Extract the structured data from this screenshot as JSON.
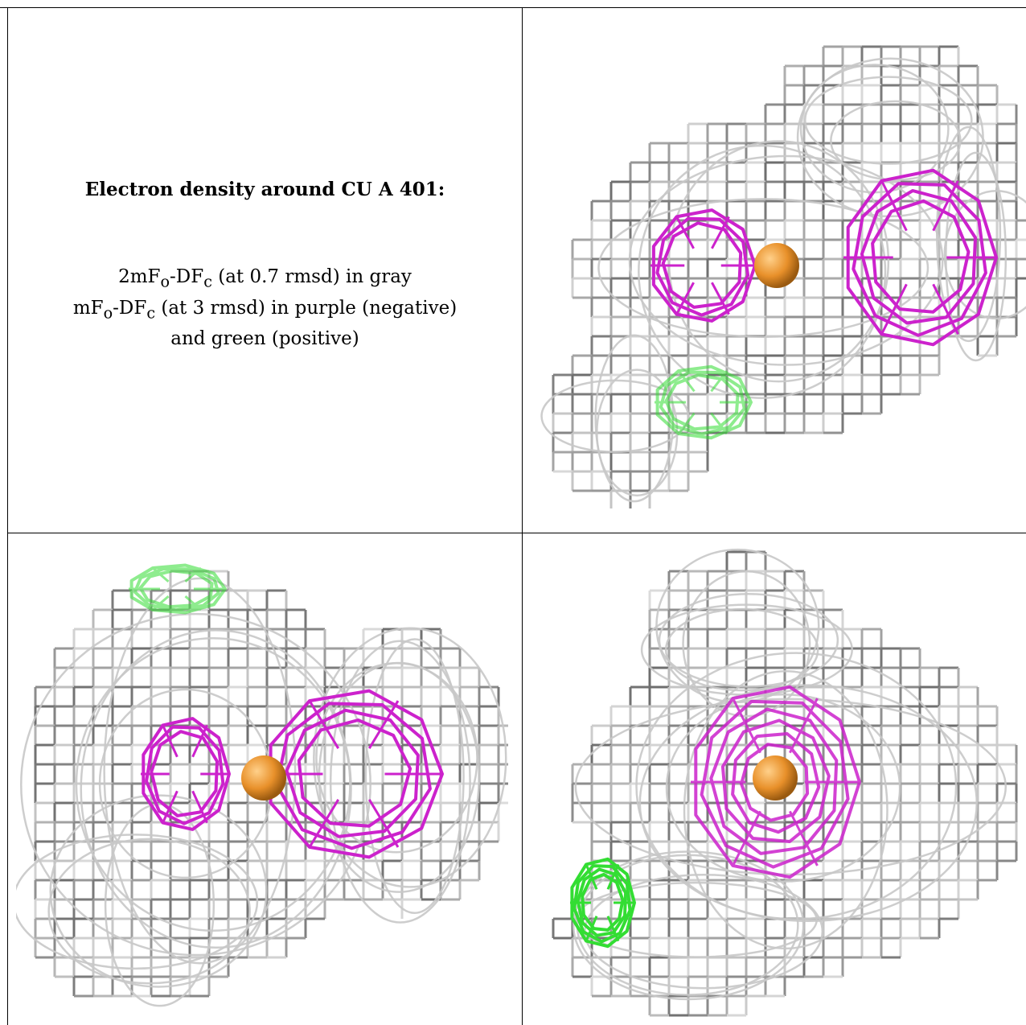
{
  "caption": {
    "title": "Electron density around CU A 401:",
    "line1": "2mFo-DFc (at 0.7 rmsd) in gray",
    "line2": "mFo-DFc (at 3 rmsd) in purple (negative)",
    "line3": "and green (positive)"
  },
  "colors": {
    "map_2fofc": "#9a9a9a",
    "map_fofc_negative": "#cc22cc",
    "map_fofc_positive": "#33dd33",
    "copper_atom": "#e8902a"
  },
  "views": [
    {
      "name": "view-top-right",
      "atom": "CU A 401"
    },
    {
      "name": "view-bottom-left",
      "atom": "CU A 401"
    },
    {
      "name": "view-bottom-right",
      "atom": "CU A 401"
    }
  ]
}
